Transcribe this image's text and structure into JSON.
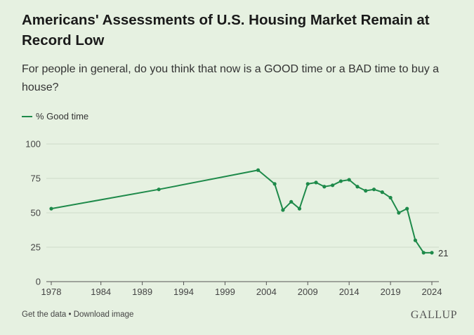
{
  "title": "Americans' Assessments of U.S. Housing Market Remain at Record Low",
  "subtitle": "For people in general, do you think that now is a GOOD time or a BAD time to buy a house?",
  "footer": {
    "get_data": "Get the data",
    "separator": " • ",
    "download": "Download image"
  },
  "brand": "GALLUP",
  "colors": {
    "line": "#1e8a4a",
    "background": "#e6f1e1",
    "grid": "#cfdcc9"
  },
  "chart_data": {
    "type": "line",
    "title": "Americans' Assessments of U.S. Housing Market Remain at Record Low",
    "xlabel": "",
    "ylabel": "",
    "xlim": [
      1978,
      2024
    ],
    "ylim": [
      0,
      100
    ],
    "x_ticks": [
      "1978",
      "1984",
      "1989",
      "1994",
      "1999",
      "2004",
      "2009",
      "2014",
      "2019",
      "2024"
    ],
    "y_ticks": [
      "0",
      "25",
      "50",
      "75",
      "100"
    ],
    "grid": true,
    "legend_position": "top-left",
    "end_label": "21",
    "series": [
      {
        "name": "% Good time",
        "x": [
          1978,
          1991,
          2003,
          2005,
          2006,
          2007,
          2008,
          2009,
          2010,
          2011,
          2012,
          2013,
          2014,
          2015,
          2016,
          2017,
          2018,
          2019,
          2020,
          2021,
          2022,
          2023,
          2024
        ],
        "values": [
          53,
          67,
          81,
          71,
          52,
          58,
          53,
          71,
          72,
          69,
          70,
          73,
          74,
          69,
          66,
          67,
          65,
          61,
          50,
          53,
          30,
          21,
          21
        ]
      }
    ]
  }
}
